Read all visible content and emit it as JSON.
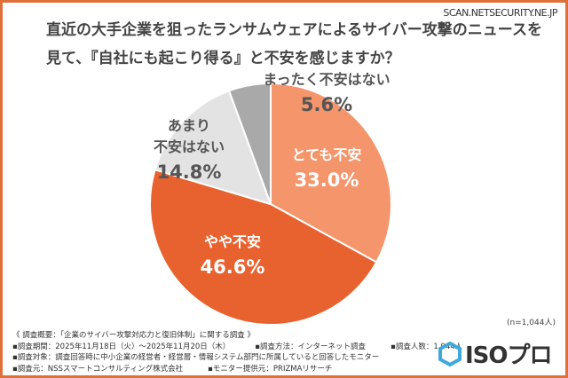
{
  "header": {
    "title_line1": "直近の大手企業を狙ったランサムウェアによるサイバー攻撃のニュースを",
    "title_line2": "見て、『自社にも起こり得る』と不安を感じますか？",
    "site": "SCAN.NETSECURITY.NE.JP"
  },
  "chart_data": {
    "type": "pie",
    "start": "top",
    "direction": "clockwise",
    "slices": [
      {
        "label": "とても不安",
        "value": 33.0,
        "display": "33.0%",
        "color": "#F4956B"
      },
      {
        "label": "やや不安",
        "value": 46.6,
        "display": "46.6%",
        "color": "#E8622F"
      },
      {
        "label": "あまり不安はない",
        "label_lines": [
          "あまり",
          "不安はない"
        ],
        "value": 14.8,
        "display": "14.8%",
        "color": "#E3E3E3"
      },
      {
        "label": "まったく不安はない",
        "value": 5.6,
        "display": "5.6%",
        "color": "#A9A9A9"
      }
    ]
  },
  "sample": "(n=1,044人)",
  "notes": {
    "summary": "《 調査概要：「企業のサイバー攻撃対応力と復旧体制」に関する調査 》",
    "period": "▪調査期間：2025年11月18日（火）～2025年11月20日（木）",
    "method": "▪調査方法：インターネット調査",
    "count": "▪調査人数：1,044人",
    "target": "▪調査対象：調査回答時に中小企業の経営者・経営層・情報システム部門に所属していると回答したモニター",
    "org": "▪調査元：NSSスマートコンサルティング株式会社",
    "monitor": "▪モニター提供元：PRIZMAリサーチ"
  },
  "logo": {
    "text": "ISOプロ",
    "brand_color": "#3FA9DD"
  }
}
